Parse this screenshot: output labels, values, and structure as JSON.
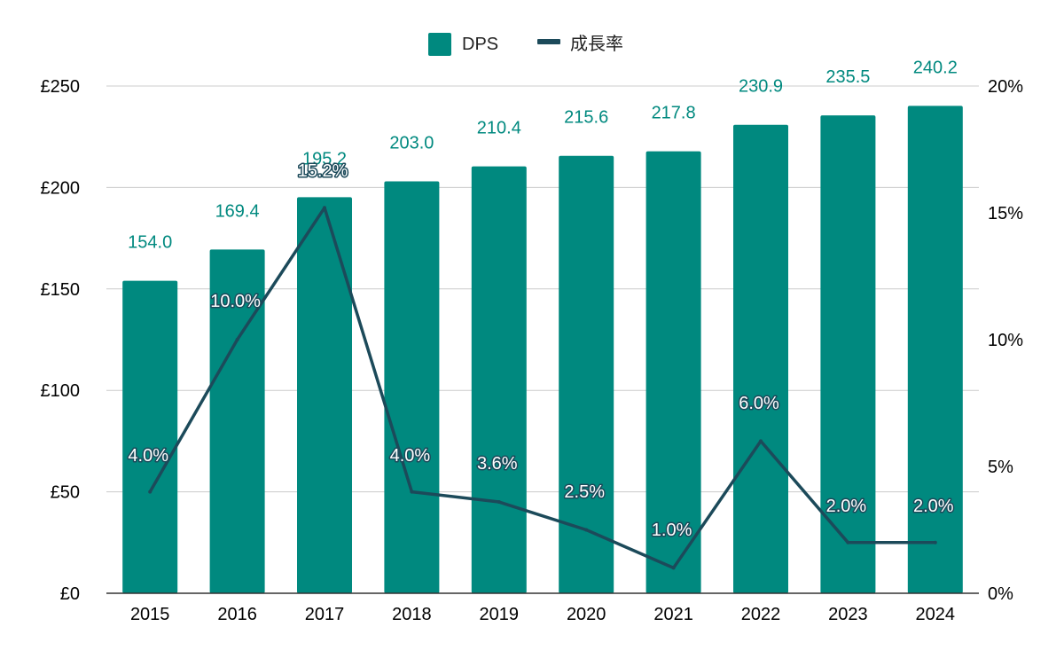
{
  "chart_data": {
    "type": "bar",
    "categories": [
      "2015",
      "2016",
      "2017",
      "2018",
      "2019",
      "2020",
      "2021",
      "2022",
      "2023",
      "2024"
    ],
    "series": [
      {
        "name": "DPS",
        "kind": "bar",
        "axis": "left",
        "values": [
          154.0,
          169.4,
          195.2,
          203.0,
          210.4,
          215.6,
          217.8,
          230.9,
          235.5,
          240.2
        ],
        "labels": [
          "154.0",
          "169.4",
          "195.2",
          "203.0",
          "210.4",
          "215.6",
          "217.8",
          "230.9",
          "235.5",
          "240.2"
        ]
      },
      {
        "name": "成長率",
        "kind": "line",
        "axis": "right",
        "values": [
          4.0,
          10.0,
          15.2,
          4.0,
          3.6,
          2.5,
          1.0,
          6.0,
          2.0,
          2.0
        ],
        "labels": [
          "4.0%",
          "10.0%",
          "15.2%",
          "4.0%",
          "3.6%",
          "2.5%",
          "1.0%",
          "6.0%",
          "2.0%",
          "2.0%"
        ]
      }
    ],
    "y_left": {
      "min": 0,
      "max": 250,
      "ticks": [
        0,
        50,
        100,
        150,
        200,
        250
      ],
      "tick_labels": [
        "£0",
        "£50",
        "£100",
        "£150",
        "£200",
        "£250"
      ]
    },
    "y_right": {
      "min": 0,
      "max": 20,
      "ticks": [
        0,
        5,
        10,
        15,
        20
      ],
      "tick_labels": [
        "0%",
        "5%",
        "10%",
        "15%",
        "20%"
      ]
    },
    "grid": true,
    "legend_position": "top-center",
    "colors": {
      "bar": "#00897f",
      "line": "#1c4a5a",
      "bar_label": "#00897f",
      "grid": "#cccccc",
      "axis": "#333333"
    }
  }
}
